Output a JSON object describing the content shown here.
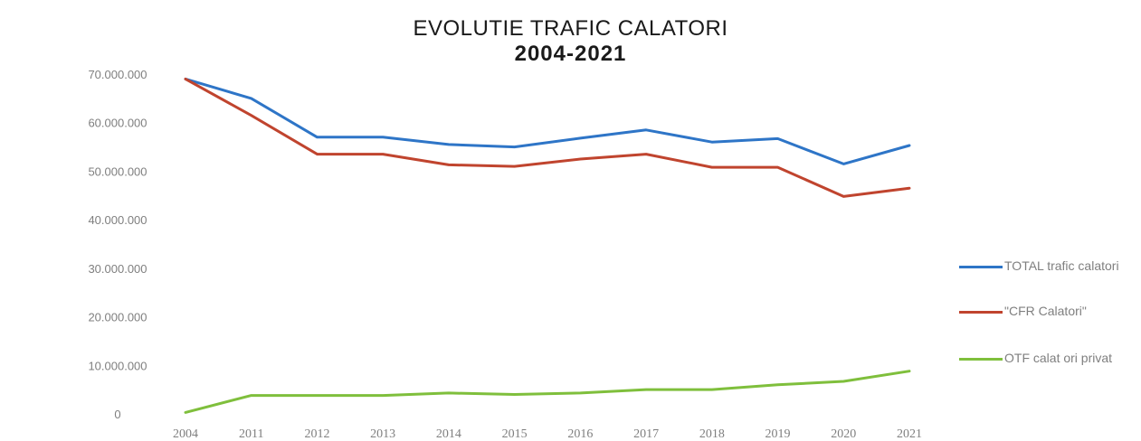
{
  "title": "EVOLUTIE TRAFIC CALATORI",
  "subtitle": "2004-2021",
  "chart_data": {
    "type": "line",
    "title": "EVOLUTIE TRAFIC CALATORI",
    "subtitle": "2004-2021",
    "xlabel": "",
    "ylabel": "",
    "ylim": [
      0,
      70000000
    ],
    "yticks": [
      0,
      10000000,
      20000000,
      30000000,
      40000000,
      50000000,
      60000000,
      70000000
    ],
    "ytick_labels": [
      "0",
      "10.000.000",
      "20.000.000",
      "30.000.000",
      "40.000.000",
      "50.000.000",
      "60.000.000",
      "70.000.000"
    ],
    "categories": [
      "2004",
      "2011",
      "2012",
      "2013",
      "2014",
      "2015",
      "2016",
      "2017",
      "2018",
      "2019",
      "2020",
      "2021"
    ],
    "grid": false,
    "legend_position": "right",
    "series": [
      {
        "name": "TOTAL trafic calatori",
        "color": "#2e75c7",
        "values": [
          69000000,
          65000000,
          57000000,
          57000000,
          55500000,
          55000000,
          56800000,
          58500000,
          56000000,
          56700000,
          51500000,
          55300000
        ]
      },
      {
        "name": "\"CFR Calatori\"",
        "color": "#c0442e",
        "values": [
          69000000,
          61500000,
          53500000,
          53500000,
          51300000,
          51000000,
          52500000,
          53500000,
          50800000,
          50800000,
          44800000,
          46500000
        ]
      },
      {
        "name": "OTF calat ori privat",
        "color": "#7fbf3c",
        "values": [
          300000,
          3800000,
          3800000,
          3800000,
          4300000,
          4000000,
          4300000,
          5000000,
          5000000,
          6000000,
          6700000,
          8800000
        ]
      }
    ]
  }
}
